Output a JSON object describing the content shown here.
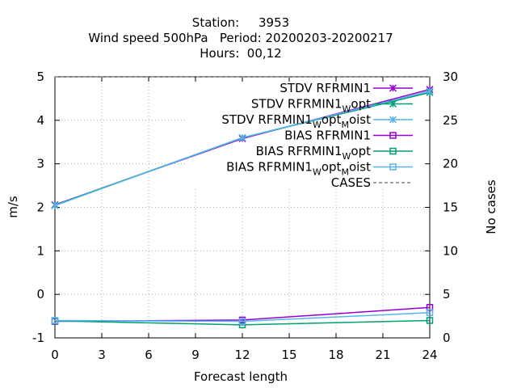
{
  "title": {
    "line1": "Station:     3953",
    "line2": "Wind speed 500hPa   Period: 20200203-20200217",
    "line3": "Hours:  00,12"
  },
  "chart_data": {
    "type": "line",
    "xlabel": "Forecast length",
    "ylabel": "m/s",
    "y2label": "No cases",
    "xlim": [
      0,
      24
    ],
    "ylim": [
      -1,
      5
    ],
    "y2lim": [
      0,
      30
    ],
    "xticks": [
      0,
      3,
      6,
      9,
      12,
      15,
      18,
      21,
      24
    ],
    "yticks": [
      -1,
      0,
      1,
      2,
      3,
      4,
      5
    ],
    "y2ticks": [
      0,
      5,
      10,
      15,
      20,
      25,
      30
    ],
    "legend_position": "top-right",
    "series": [
      {
        "legend": [
          "STDV RFRMIN1"
        ],
        "color": "#9400D3",
        "marker": "x-star",
        "x": [
          0,
          12,
          24
        ],
        "y": [
          2.06,
          3.58,
          4.71
        ]
      },
      {
        "legend": [
          "STDV RFRMIN1",
          "W",
          "opt"
        ],
        "color": "#009E73",
        "marker": "x-star",
        "x": [
          0,
          12,
          24
        ],
        "y": [
          2.05,
          3.6,
          4.64
        ]
      },
      {
        "legend": [
          "STDV RFRMIN1",
          "W",
          "opt",
          "M",
          "oist"
        ],
        "color": "#56B4E9",
        "marker": "x-star",
        "x": [
          0,
          12,
          24
        ],
        "y": [
          2.04,
          3.6,
          4.67
        ]
      },
      {
        "legend": [
          "BIAS RFRMIN1"
        ],
        "color": "#9400D3",
        "marker": "square",
        "x": [
          0,
          12,
          24
        ],
        "y": [
          -0.62,
          -0.59,
          -0.3
        ]
      },
      {
        "legend": [
          "BIAS RFRMIN1",
          "W",
          "opt"
        ],
        "color": "#009E73",
        "marker": "square",
        "x": [
          0,
          12,
          24
        ],
        "y": [
          -0.61,
          -0.7,
          -0.6
        ]
      },
      {
        "legend": [
          "BIAS RFRMIN1",
          "W",
          "opt",
          "M",
          "oist"
        ],
        "color": "#56B4E9",
        "marker": "square",
        "x": [
          0,
          12,
          24
        ],
        "y": [
          -0.6,
          -0.62,
          -0.42
        ]
      },
      {
        "legend": [
          "CASES"
        ],
        "color": "#808080",
        "marker": "none",
        "dashed": true,
        "axis": "y2",
        "x": [
          0,
          12,
          24
        ],
        "y": [
          30,
          30,
          30
        ]
      }
    ]
  }
}
